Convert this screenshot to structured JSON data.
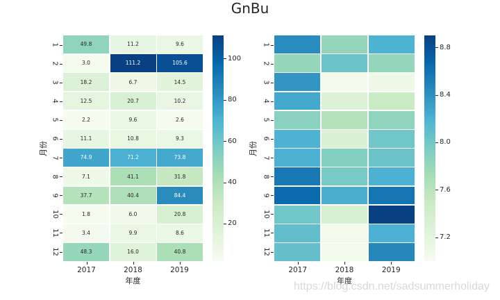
{
  "title": "GnBu",
  "watermark": "https://blog.csdn.net/sadsummerholiday",
  "text_color": "#262626",
  "annotation_light_color": "#ffffff",
  "colormap": {
    "name": "GnBu",
    "stops": [
      "#f7fcf0",
      "#e0f3db",
      "#ccebc5",
      "#a8ddb5",
      "#7bccc4",
      "#4eb3d3",
      "#2b8cbe",
      "#0868ac",
      "#084081"
    ]
  },
  "chart_data": [
    {
      "type": "heatmap",
      "xlabel": "年度",
      "ylabel": "月份",
      "x": [
        "2017",
        "2018",
        "2019"
      ],
      "y": [
        "1",
        "2",
        "3",
        "4",
        "5",
        "6",
        "7",
        "8",
        "9",
        "10",
        "11",
        "12"
      ],
      "values": [
        [
          49.8,
          11.2,
          9.6
        ],
        [
          3.0,
          111.2,
          105.6
        ],
        [
          18.2,
          6.7,
          14.5
        ],
        [
          12.5,
          20.7,
          10.2
        ],
        [
          2.2,
          9.6,
          2.6
        ],
        [
          11.1,
          10.8,
          9.3
        ],
        [
          74.9,
          71.2,
          73.8
        ],
        [
          7.1,
          41.1,
          31.8
        ],
        [
          37.7,
          40.4,
          84.4
        ],
        [
          1.8,
          6.0,
          20.8
        ],
        [
          3.4,
          9.9,
          8.6
        ],
        [
          48.3,
          16.0,
          40.8
        ]
      ],
      "vmin": 1.8,
      "vmax": 111.2,
      "annotated": true,
      "annot_format": "1dp",
      "colorbar_ticks": [
        100,
        80,
        60,
        40,
        20
      ],
      "colorbar_tick_format": "int",
      "legend_position": "right-colorbar",
      "grid": false
    },
    {
      "type": "heatmap",
      "xlabel": "年度",
      "ylabel": "月份",
      "x": [
        "2017",
        "2018",
        "2019"
      ],
      "y": [
        "1",
        "2",
        "3",
        "4",
        "5",
        "6",
        "7",
        "8",
        "9",
        "10",
        "11",
        "12"
      ],
      "values": [
        [
          8.43,
          7.82,
          8.19
        ],
        [
          7.81,
          8.03,
          7.82
        ],
        [
          8.37,
          7.04,
          7.1
        ],
        [
          8.25,
          7.29,
          7.48
        ],
        [
          7.87,
          7.63,
          7.84
        ],
        [
          8.19,
          7.31,
          8.01
        ],
        [
          8.2,
          7.91,
          8.03
        ],
        [
          8.56,
          7.97,
          8.2
        ],
        [
          8.65,
          8.22,
          8.58
        ],
        [
          8.01,
          7.35,
          8.9
        ],
        [
          8.08,
          7.04,
          8.2
        ],
        [
          8.06,
          7.04,
          8.46
        ]
      ],
      "vmin": 7.0,
      "vmax": 8.9,
      "annotated": false,
      "annot_format": "1dp",
      "colorbar_ticks": [
        8.8,
        8.4,
        8.0,
        7.6,
        7.2
      ],
      "colorbar_tick_format": "1dp",
      "legend_position": "right-colorbar",
      "grid": false
    }
  ]
}
